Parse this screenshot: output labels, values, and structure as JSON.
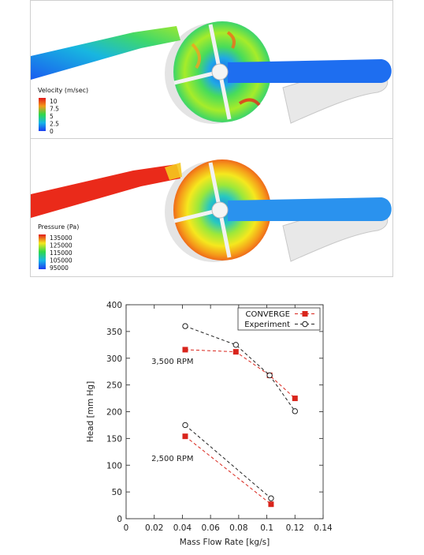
{
  "contours": {
    "velocity": {
      "title": "Velocity (m/sec)",
      "ticks": [
        "10",
        "7.5",
        "5",
        "2.5",
        "0"
      ]
    },
    "pressure": {
      "title": "Pressure (Pa)",
      "ticks": [
        "135000",
        "125000",
        "115000",
        "105000",
        "95000"
      ]
    }
  },
  "chart_data": {
    "type": "scatter",
    "title": "",
    "xlabel": "Mass Flow Rate [kg/s]",
    "ylabel": "Head [mm Hg]",
    "xlim": [
      0,
      0.14
    ],
    "ylim": [
      0,
      400
    ],
    "xticks": [
      "0",
      "0.02",
      "0.04",
      "0.06",
      "0.08",
      "0.1",
      "0.12",
      "0.14"
    ],
    "yticks": [
      "0",
      "50",
      "100",
      "150",
      "200",
      "250",
      "300",
      "350",
      "400"
    ],
    "grid": false,
    "legend_position": "top-right",
    "legend": [
      "CONVERGE",
      "Experiment"
    ],
    "annotations": [
      "3,500 RPM",
      "2,500 RPM"
    ],
    "series": [
      {
        "name": "CONVERGE",
        "group": "3,500 RPM",
        "color": "#d9251c",
        "marker": "filled-square",
        "x": [
          0.042,
          0.078,
          0.102,
          0.12
        ],
        "y": [
          316,
          312,
          268,
          225
        ]
      },
      {
        "name": "Experiment",
        "group": "3,500 RPM",
        "color": "#222222",
        "marker": "open-circle",
        "x": [
          0.042,
          0.078,
          0.102,
          0.12
        ],
        "y": [
          360,
          325,
          268,
          201
        ]
      },
      {
        "name": "CONVERGE",
        "group": "2,500 RPM",
        "color": "#d9251c",
        "marker": "filled-square",
        "x": [
          0.042,
          0.103
        ],
        "y": [
          154,
          27
        ]
      },
      {
        "name": "Experiment",
        "group": "2,500 RPM",
        "color": "#222222",
        "marker": "open-circle",
        "x": [
          0.042,
          0.103
        ],
        "y": [
          175,
          38
        ]
      }
    ]
  }
}
